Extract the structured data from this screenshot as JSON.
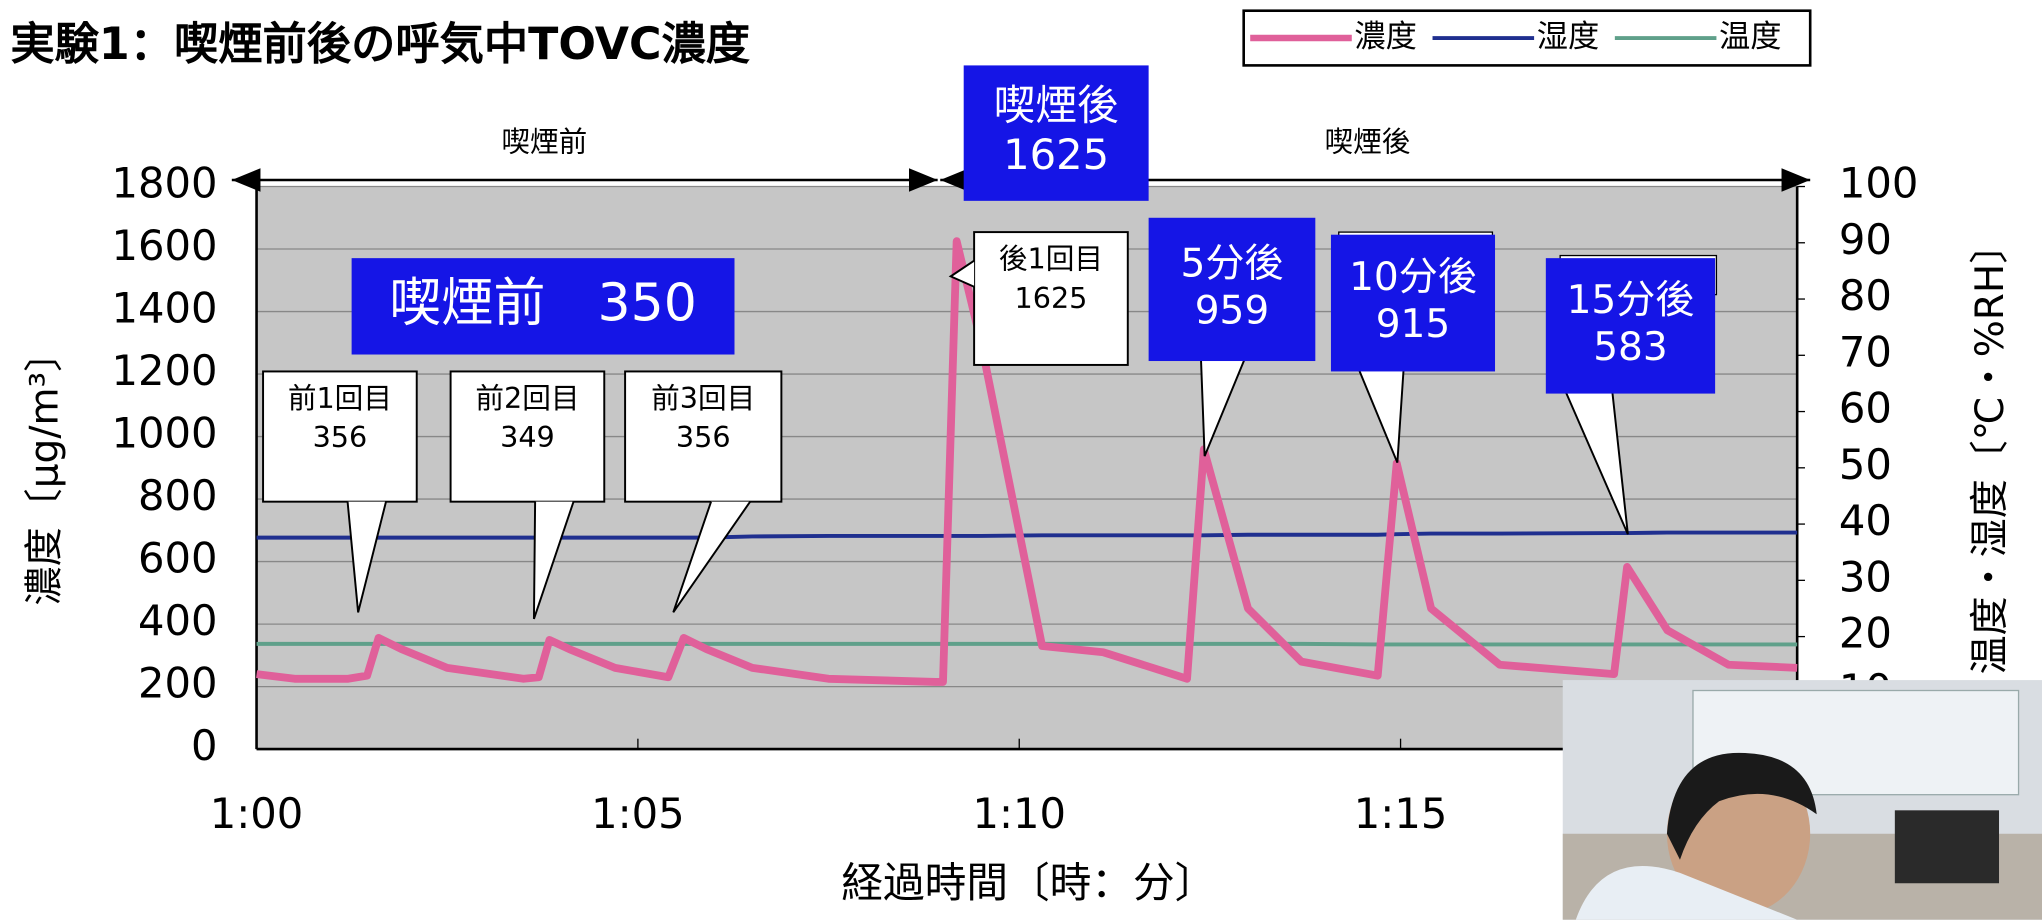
{
  "chart_data": {
    "type": "line",
    "title": "実験1：喫煙前後の呼気中TOVC濃度",
    "x_label": "経過時間〔時：分〕",
    "y_label": "濃度〔μg/m³〕",
    "y2_label": "温度・湿度〔℃・%RH〕",
    "x": [
      0,
      0.5,
      1.2,
      1.45,
      1.6,
      1.9,
      2.5,
      3.5,
      3.7,
      3.84,
      4.1,
      4.7,
      5.4,
      5.6,
      5.9,
      6.5,
      7.5,
      8.9,
      9.0,
      9.18,
      9.5,
      10.3,
      11.1,
      12.2,
      12.42,
      13.0,
      13.7,
      14.7,
      14.95,
      15.4,
      16.3,
      17.8,
      17.97,
      18.5,
      19.3,
      20.2
    ],
    "xlim": [
      0,
      20.2
    ],
    "xticks": [
      {
        "value": 0,
        "label": "1:00"
      },
      {
        "value": 5,
        "label": "1:05"
      },
      {
        "value": 10,
        "label": "1:10"
      },
      {
        "value": 15,
        "label": "1:15"
      }
    ],
    "ylim": [
      0,
      1800
    ],
    "yticks": [
      0,
      200,
      400,
      600,
      800,
      1000,
      1200,
      1400,
      1600,
      1800
    ],
    "y2lim": [
      0,
      100
    ],
    "y2ticks": [
      10,
      20,
      30,
      40,
      50,
      60,
      70,
      80,
      90,
      100
    ],
    "grid": true,
    "series": [
      {
        "name": "濃度",
        "color": "#e0609a",
        "values": [
          240,
          225,
          225,
          235,
          356,
          320,
          260,
          225,
          230,
          349,
          320,
          260,
          230,
          356,
          320,
          260,
          225,
          215,
          215,
          1625,
          1300,
          330,
          310,
          225,
          959,
          450,
          280,
          235,
          915,
          450,
          270,
          240,
          583,
          380,
          270,
          260
        ]
      },
      {
        "name": "湿度",
        "color": "#1f2f8f",
        "axis": "y2",
        "values": [
          37.6,
          37.6,
          37.6,
          37.6,
          37.6,
          37.6,
          37.6,
          37.6,
          37.6,
          37.6,
          37.6,
          37.6,
          37.6,
          37.6,
          37.6,
          37.8,
          37.9,
          37.9,
          37.9,
          37.9,
          37.9,
          38.0,
          38.0,
          38.0,
          38.0,
          38.1,
          38.1,
          38.1,
          38.2,
          38.3,
          38.3,
          38.4,
          38.4,
          38.5,
          38.5,
          38.5
        ]
      },
      {
        "name": "温度",
        "color": "#5fa08a",
        "axis": "y2",
        "values": [
          18.7,
          18.7,
          18.7,
          18.7,
          18.7,
          18.7,
          18.7,
          18.7,
          18.7,
          18.7,
          18.7,
          18.7,
          18.7,
          18.7,
          18.7,
          18.7,
          18.7,
          18.7,
          18.7,
          18.7,
          18.7,
          18.7,
          18.7,
          18.7,
          18.7,
          18.7,
          18.7,
          18.6,
          18.6,
          18.6,
          18.6,
          18.6,
          18.6,
          18.6,
          18.6,
          18.6
        ]
      }
    ],
    "periods": [
      "喫煙前",
      "喫煙後"
    ],
    "callouts": [
      {
        "label": "前1回目",
        "value": 356
      },
      {
        "label": "前2回目",
        "value": 349
      },
      {
        "label": "前3回目",
        "value": 356
      },
      {
        "label": "後1回目",
        "value": 1625
      }
    ],
    "highlights": [
      {
        "lines": [
          "喫煙前　350"
        ]
      },
      {
        "lines": [
          "喫煙後",
          "1625"
        ]
      },
      {
        "lines": [
          "5分後",
          "959"
        ]
      },
      {
        "lines": [
          "10分後",
          "915"
        ]
      },
      {
        "lines": [
          "15分後",
          "583"
        ]
      }
    ]
  }
}
